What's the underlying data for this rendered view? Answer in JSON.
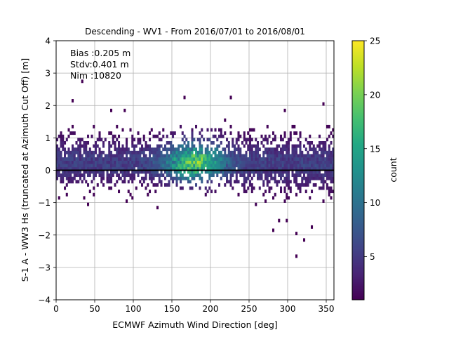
{
  "chart_data": {
    "type": "heatmap",
    "title": "Descending - WV1 - From 2016/07/01 to 2016/08/01",
    "xlabel": "ECMWF Azimuth Wind Direction [deg]",
    "ylabel": "S-1 A - WW3 Hs (truncated at Azimuth Cut Off) [m]",
    "xlim": [
      0,
      360
    ],
    "ylim": [
      -4,
      4
    ],
    "x_ticks": [
      "0",
      "50",
      "100",
      "150",
      "200",
      "250",
      "300",
      "350"
    ],
    "y_ticks": [
      "4",
      "3",
      "2",
      "1",
      "0",
      "−1",
      "−2",
      "−3",
      "−4"
    ],
    "grid": true,
    "colormap": "viridis",
    "colorbar": {
      "label": "count",
      "range": [
        1,
        25
      ],
      "ticks": [
        "25",
        "20",
        "15",
        "10",
        "5"
      ],
      "tick_values": [
        25,
        20,
        15,
        10,
        5
      ]
    },
    "reference_line": {
      "y": 0,
      "color": "#000000"
    },
    "annotations": [
      "Bias :0.205 m",
      "Stdv:0.401 m",
      "Nim :10820"
    ],
    "cell_width_deg": 2.5,
    "cell_height_m": 0.1,
    "density_model": {
      "description": "Approximate 2D count density read from the image",
      "center_y": 0.2,
      "peak_count": 24,
      "peak_x": 180,
      "outliers": [
        {
          "x": 33,
          "y": 2.75
        },
        {
          "x": 22,
          "y": 2.1
        },
        {
          "x": 165,
          "y": 2.3
        },
        {
          "x": 225,
          "y": 2.3
        },
        {
          "x": 225,
          "y": 2.2
        },
        {
          "x": 70,
          "y": 1.9
        },
        {
          "x": 88,
          "y": 1.85
        },
        {
          "x": 295,
          "y": 1.9
        },
        {
          "x": 345,
          "y": 2.05
        },
        {
          "x": 310,
          "y": -2.0
        },
        {
          "x": 312,
          "y": -2.65
        },
        {
          "x": 322,
          "y": -2.15
        },
        {
          "x": 282,
          "y": -1.9
        },
        {
          "x": 332,
          "y": -1.75
        },
        {
          "x": 288,
          "y": -1.6
        },
        {
          "x": 40,
          "y": -1.1
        },
        {
          "x": 130,
          "y": -1.15
        }
      ]
    }
  }
}
